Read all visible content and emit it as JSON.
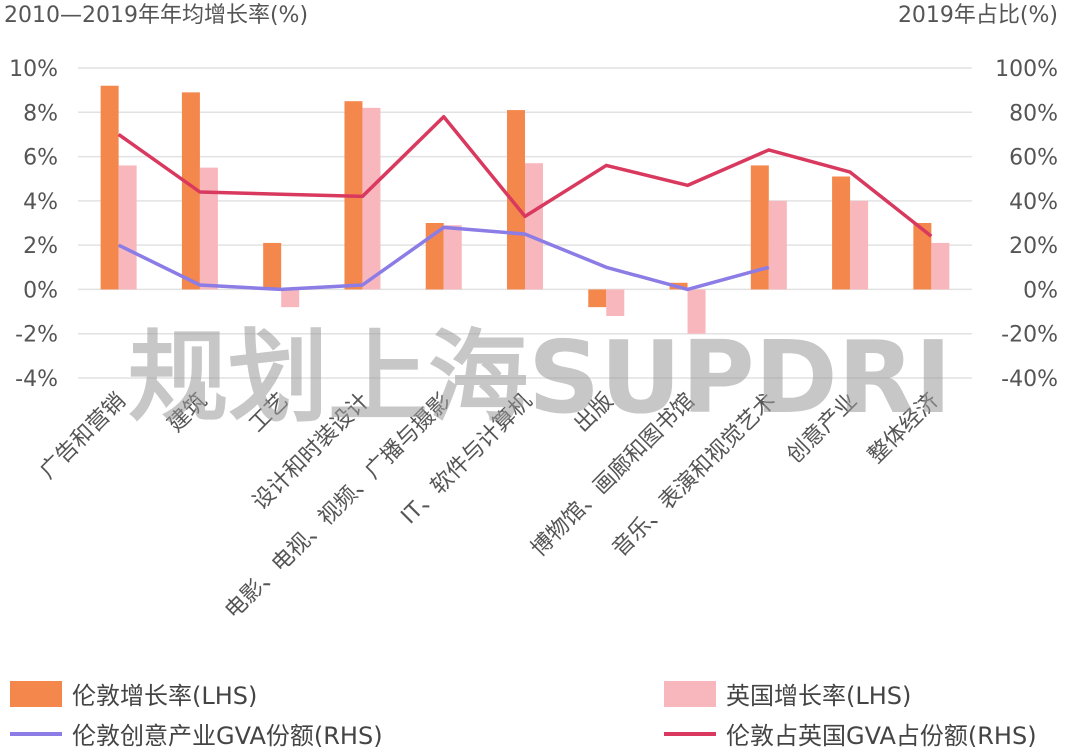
{
  "chart_data": {
    "type": "bar",
    "left_axis_title": "2010—2019年年均增长率(%)",
    "right_axis_title": "2019年占比(%)",
    "categories": [
      "广告和营销",
      "建筑",
      "工艺",
      "设计和时装设计",
      "电影、电视、视频、广播与摄影",
      "IT、软件与计算机",
      "出版",
      "博物馆、画廊和图书馆",
      "音乐、表演和视觉艺术",
      "创意产业",
      "整体经济"
    ],
    "left_ticks": [
      "10%",
      "8%",
      "6%",
      "4%",
      "2%",
      "0%",
      "-2%",
      "-4%"
    ],
    "right_ticks": [
      "100%",
      "80%",
      "60%",
      "40%",
      "20%",
      "0%",
      "-20%",
      "-40%"
    ],
    "ylim_left": [
      -4,
      10
    ],
    "ylim_right": [
      -40,
      100
    ],
    "bar_series": [
      {
        "name": "伦敦增长率(LHS)",
        "axis": "left",
        "color": "#F4874B",
        "values": [
          9.2,
          8.9,
          2.1,
          8.5,
          3.0,
          8.1,
          -0.8,
          0.3,
          5.6,
          5.1,
          3.0
        ]
      },
      {
        "name": "英国增长率(LHS)",
        "axis": "left",
        "color": "#F8B7BD",
        "values": [
          5.6,
          5.5,
          -0.8,
          8.2,
          2.9,
          5.7,
          -1.2,
          -2.0,
          4.0,
          4.0,
          2.1
        ]
      }
    ],
    "line_series": [
      {
        "name": "伦敦创意产业GVA份额(RHS)",
        "axis": "right",
        "color": "#8B7CE6",
        "values": [
          20,
          2,
          0,
          2,
          28,
          25,
          10,
          0,
          10,
          null,
          null
        ]
      },
      {
        "name": "伦敦占英国GVA占份额(RHS)",
        "axis": "right",
        "color": "#D9395E",
        "values": [
          70,
          44,
          43,
          42,
          78,
          33,
          56,
          47,
          63,
          53,
          24
        ]
      }
    ],
    "grid": true,
    "legend_position": "bottom"
  },
  "watermark": "规划上海SUPDRI"
}
